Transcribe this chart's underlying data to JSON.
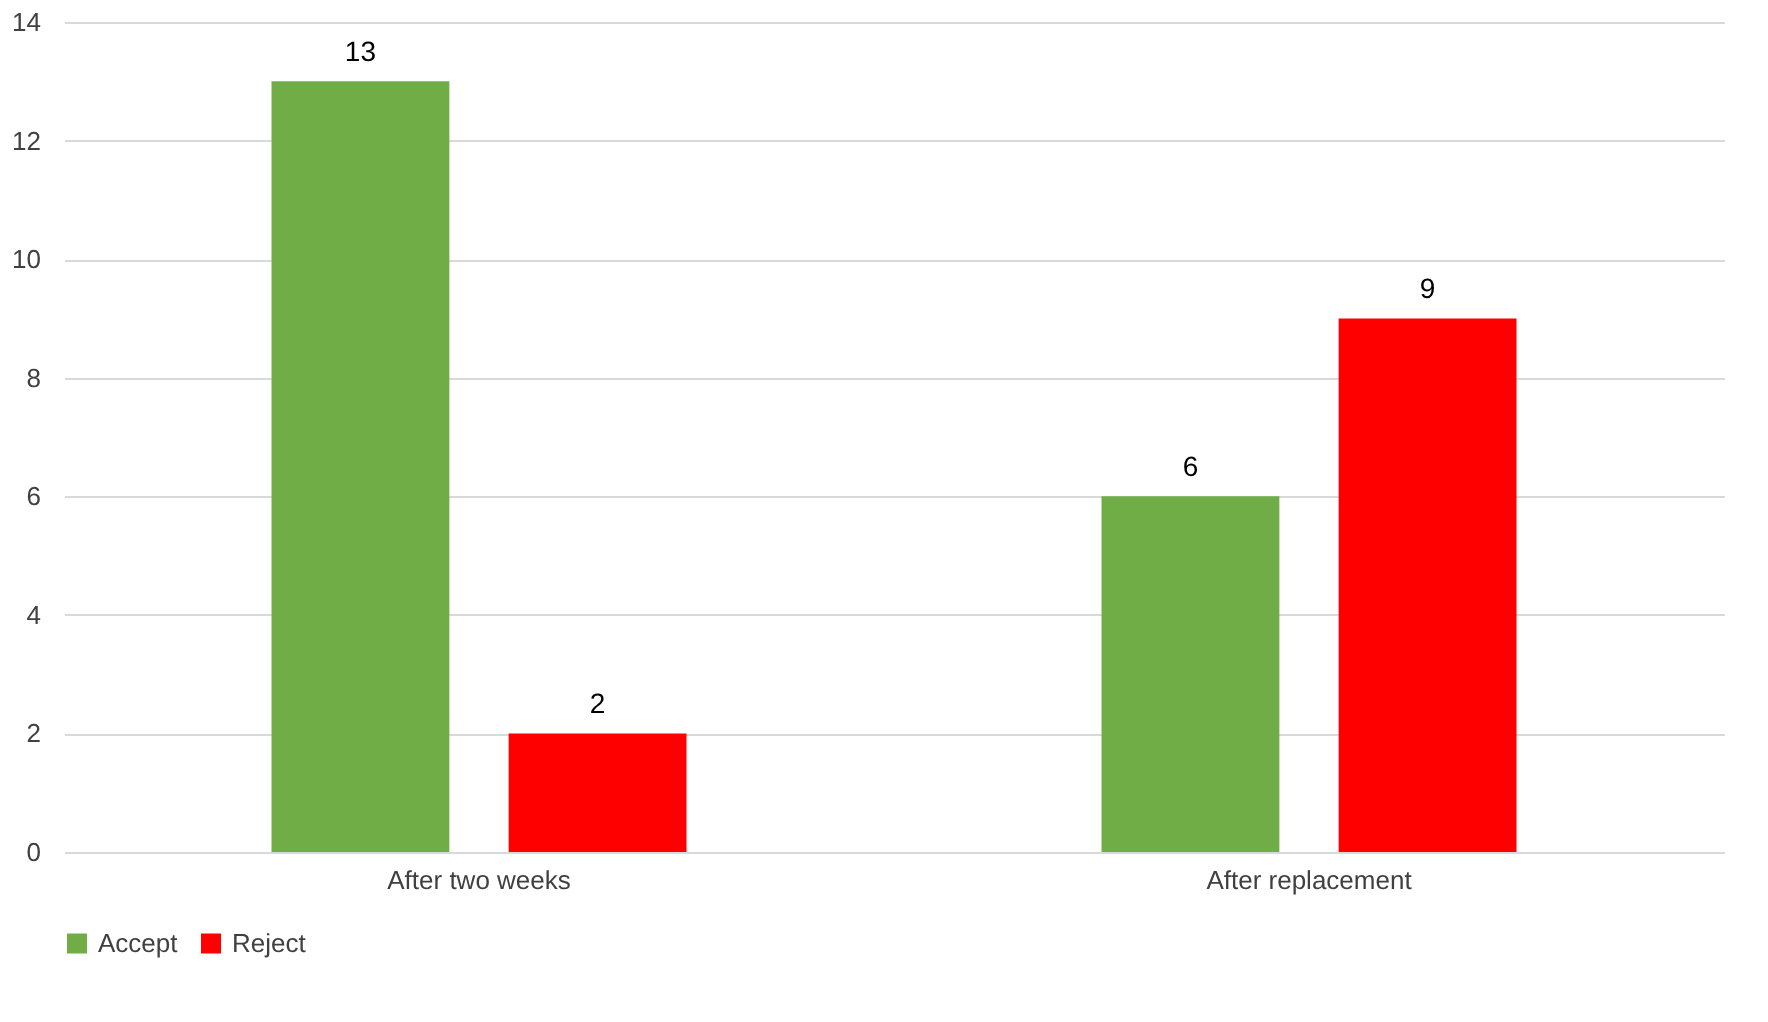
{
  "chart_data": {
    "type": "bar",
    "categories": [
      "After two weeks",
      "After replacement"
    ],
    "series": [
      {
        "name": "Accept",
        "color": "#70ad47",
        "values": [
          13,
          6
        ]
      },
      {
        "name": "Reject",
        "color": "#ff0000",
        "values": [
          2,
          9
        ]
      }
    ],
    "ylim": [
      0,
      14
    ],
    "yticks": [
      0,
      2,
      4,
      6,
      8,
      10,
      12,
      14
    ],
    "grid": "y",
    "legend": "bottom",
    "data_labels": true
  }
}
